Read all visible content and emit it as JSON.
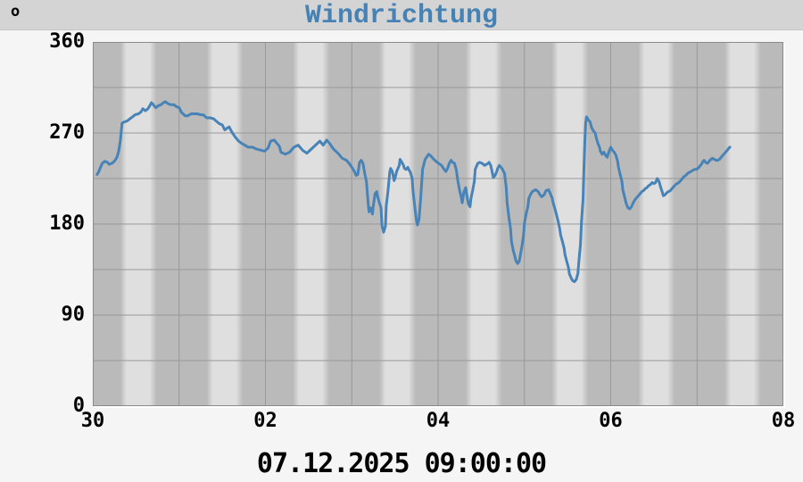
{
  "header": {
    "unit_label": "o",
    "title": "Windrichtung"
  },
  "footer": {
    "timestamp": "07.12.2025 09:00:00"
  },
  "colors": {
    "title": "#4682b4",
    "line": "#4783b7",
    "header_bar": "#d4d4d4",
    "page_background": "#f5f5f5",
    "band_night": "#bababa",
    "band_day": "#dfdfdf",
    "gridline": "#989898",
    "plot_border": "#8a8a8a",
    "text": "#000000"
  },
  "chart_data": {
    "type": "line",
    "title": "Windrichtung",
    "ylabel": "o",
    "ylim": [
      0,
      360
    ],
    "y_ticks": [
      0,
      90,
      180,
      270,
      360
    ],
    "grid_y_step": 45,
    "xlim_days": [
      0,
      8
    ],
    "x_ticks": [
      {
        "day": 0,
        "label": "30"
      },
      {
        "day": 2,
        "label": "02"
      },
      {
        "day": 4,
        "label": "04"
      },
      {
        "day": 6,
        "label": "06"
      },
      {
        "day": 8,
        "label": "08"
      }
    ],
    "grid": true,
    "legend": "none",
    "background_bands": "daily day/night shading, night dark gray, day light gray",
    "series": [
      {
        "name": "Windrichtung",
        "unit": "deg",
        "points": [
          [
            0.05,
            229
          ],
          [
            0.07,
            232
          ],
          [
            0.09,
            236
          ],
          [
            0.11,
            240
          ],
          [
            0.14,
            242
          ],
          [
            0.17,
            241
          ],
          [
            0.19,
            239
          ],
          [
            0.22,
            240
          ],
          [
            0.25,
            242
          ],
          [
            0.28,
            246
          ],
          [
            0.3,
            252
          ],
          [
            0.32,
            263
          ],
          [
            0.33,
            272
          ],
          [
            0.34,
            280
          ],
          [
            0.37,
            281
          ],
          [
            0.4,
            282
          ],
          [
            0.43,
            284
          ],
          [
            0.46,
            286
          ],
          [
            0.49,
            288
          ],
          [
            0.53,
            289
          ],
          [
            0.56,
            291
          ],
          [
            0.58,
            294
          ],
          [
            0.61,
            292
          ],
          [
            0.64,
            294
          ],
          [
            0.66,
            297
          ],
          [
            0.68,
            300
          ],
          [
            0.71,
            297
          ],
          [
            0.73,
            295
          ],
          [
            0.76,
            297
          ],
          [
            0.79,
            298
          ],
          [
            0.82,
            300
          ],
          [
            0.84,
            301
          ],
          [
            0.87,
            299
          ],
          [
            0.9,
            298
          ],
          [
            0.94,
            298
          ],
          [
            0.97,
            296
          ],
          [
            1.0,
            295
          ],
          [
            1.03,
            290
          ],
          [
            1.07,
            287
          ],
          [
            1.1,
            287
          ],
          [
            1.14,
            289
          ],
          [
            1.17,
            289
          ],
          [
            1.21,
            289
          ],
          [
            1.25,
            288
          ],
          [
            1.28,
            288
          ],
          [
            1.32,
            285
          ],
          [
            1.36,
            285
          ],
          [
            1.4,
            284
          ],
          [
            1.44,
            281
          ],
          [
            1.47,
            279
          ],
          [
            1.5,
            278
          ],
          [
            1.53,
            273
          ],
          [
            1.56,
            275
          ],
          [
            1.58,
            276
          ],
          [
            1.61,
            271
          ],
          [
            1.65,
            266
          ],
          [
            1.69,
            262
          ],
          [
            1.72,
            260
          ],
          [
            1.76,
            258
          ],
          [
            1.8,
            256
          ],
          [
            1.85,
            256
          ],
          [
            1.9,
            254
          ],
          [
            1.95,
            253
          ],
          [
            1.99,
            252
          ],
          [
            2.03,
            255
          ],
          [
            2.06,
            262
          ],
          [
            2.1,
            263
          ],
          [
            2.13,
            260
          ],
          [
            2.16,
            257
          ],
          [
            2.18,
            251
          ],
          [
            2.23,
            249
          ],
          [
            2.28,
            251
          ],
          [
            2.33,
            256
          ],
          [
            2.38,
            258
          ],
          [
            2.43,
            253
          ],
          [
            2.48,
            250
          ],
          [
            2.53,
            254
          ],
          [
            2.58,
            258
          ],
          [
            2.63,
            262
          ],
          [
            2.67,
            258
          ],
          [
            2.71,
            263
          ],
          [
            2.74,
            260
          ],
          [
            2.79,
            254
          ],
          [
            2.84,
            250
          ],
          [
            2.89,
            245
          ],
          [
            2.94,
            243
          ],
          [
            2.97,
            240
          ],
          [
            3.01,
            235
          ],
          [
            3.03,
            232
          ],
          [
            3.05,
            228
          ],
          [
            3.07,
            229
          ],
          [
            3.09,
            241
          ],
          [
            3.11,
            243
          ],
          [
            3.13,
            240
          ],
          [
            3.15,
            230
          ],
          [
            3.17,
            222
          ],
          [
            3.19,
            201
          ],
          [
            3.2,
            192
          ],
          [
            3.22,
            196
          ],
          [
            3.24,
            190
          ],
          [
            3.25,
            198
          ],
          [
            3.27,
            210
          ],
          [
            3.29,
            212
          ],
          [
            3.3,
            207
          ],
          [
            3.32,
            201
          ],
          [
            3.34,
            196
          ],
          [
            3.35,
            178
          ],
          [
            3.37,
            172
          ],
          [
            3.39,
            178
          ],
          [
            3.4,
            198
          ],
          [
            3.42,
            213
          ],
          [
            3.44,
            231
          ],
          [
            3.45,
            235
          ],
          [
            3.47,
            232
          ],
          [
            3.49,
            223
          ],
          [
            3.5,
            225
          ],
          [
            3.52,
            232
          ],
          [
            3.55,
            238
          ],
          [
            3.56,
            244
          ],
          [
            3.58,
            241
          ],
          [
            3.6,
            238
          ],
          [
            3.61,
            235
          ],
          [
            3.63,
            234
          ],
          [
            3.65,
            236
          ],
          [
            3.66,
            234
          ],
          [
            3.68,
            231
          ],
          [
            3.7,
            225
          ],
          [
            3.71,
            213
          ],
          [
            3.73,
            197
          ],
          [
            3.75,
            183
          ],
          [
            3.76,
            179
          ],
          [
            3.78,
            185
          ],
          [
            3.8,
            207
          ],
          [
            3.82,
            234
          ],
          [
            3.85,
            244
          ],
          [
            3.89,
            249
          ],
          [
            3.92,
            247
          ],
          [
            3.95,
            244
          ],
          [
            3.99,
            241
          ],
          [
            4.04,
            238
          ],
          [
            4.07,
            234
          ],
          [
            4.09,
            232
          ],
          [
            4.11,
            235
          ],
          [
            4.13,
            240
          ],
          [
            4.15,
            243
          ],
          [
            4.17,
            241
          ],
          [
            4.19,
            240
          ],
          [
            4.21,
            234
          ],
          [
            4.23,
            222
          ],
          [
            4.25,
            213
          ],
          [
            4.27,
            206
          ],
          [
            4.28,
            201
          ],
          [
            4.3,
            212
          ],
          [
            4.32,
            216
          ],
          [
            4.33,
            210
          ],
          [
            4.35,
            200
          ],
          [
            4.37,
            197
          ],
          [
            4.38,
            205
          ],
          [
            4.4,
            213
          ],
          [
            4.42,
            222
          ],
          [
            4.43,
            234
          ],
          [
            4.46,
            240
          ],
          [
            4.48,
            241
          ],
          [
            4.51,
            240
          ],
          [
            4.54,
            238
          ],
          [
            4.58,
            240
          ],
          [
            4.59,
            241
          ],
          [
            4.61,
            238
          ],
          [
            4.63,
            230
          ],
          [
            4.64,
            226
          ],
          [
            4.66,
            228
          ],
          [
            4.68,
            232
          ],
          [
            4.69,
            235
          ],
          [
            4.71,
            238
          ],
          [
            4.74,
            235
          ],
          [
            4.77,
            230
          ],
          [
            4.79,
            216
          ],
          [
            4.8,
            201
          ],
          [
            4.82,
            187
          ],
          [
            4.84,
            175
          ],
          [
            4.85,
            163
          ],
          [
            4.87,
            154
          ],
          [
            4.89,
            148
          ],
          [
            4.9,
            144
          ],
          [
            4.92,
            141
          ],
          [
            4.94,
            143
          ],
          [
            4.95,
            148
          ],
          [
            4.97,
            157
          ],
          [
            4.99,
            169
          ],
          [
            5.0,
            181
          ],
          [
            5.02,
            190
          ],
          [
            5.04,
            197
          ],
          [
            5.05,
            205
          ],
          [
            5.07,
            209
          ],
          [
            5.09,
            212
          ],
          [
            5.13,
            214
          ],
          [
            5.16,
            212
          ],
          [
            5.18,
            209
          ],
          [
            5.2,
            207
          ],
          [
            5.23,
            209
          ],
          [
            5.25,
            213
          ],
          [
            5.28,
            214
          ],
          [
            5.3,
            210
          ],
          [
            5.32,
            206
          ],
          [
            5.33,
            202
          ],
          [
            5.35,
            196
          ],
          [
            5.37,
            190
          ],
          [
            5.39,
            183
          ],
          [
            5.41,
            175
          ],
          [
            5.42,
            169
          ],
          [
            5.44,
            163
          ],
          [
            5.46,
            156
          ],
          [
            5.47,
            150
          ],
          [
            5.49,
            143
          ],
          [
            5.51,
            137
          ],
          [
            5.52,
            131
          ],
          [
            5.54,
            127
          ],
          [
            5.56,
            124
          ],
          [
            5.58,
            123
          ],
          [
            5.6,
            125
          ],
          [
            5.62,
            131
          ],
          [
            5.63,
            142
          ],
          [
            5.65,
            160
          ],
          [
            5.66,
            180
          ],
          [
            5.68,
            205
          ],
          [
            5.69,
            235
          ],
          [
            5.7,
            262
          ],
          [
            5.71,
            280
          ],
          [
            5.72,
            286
          ],
          [
            5.74,
            283
          ],
          [
            5.76,
            281
          ],
          [
            5.78,
            275
          ],
          [
            5.8,
            272
          ],
          [
            5.82,
            270
          ],
          [
            5.83,
            266
          ],
          [
            5.85,
            260
          ],
          [
            5.87,
            256
          ],
          [
            5.88,
            252
          ],
          [
            5.9,
            249
          ],
          [
            5.92,
            251
          ],
          [
            5.94,
            248
          ],
          [
            5.96,
            246
          ],
          [
            5.98,
            252
          ],
          [
            6.0,
            256
          ],
          [
            6.02,
            253
          ],
          [
            6.04,
            251
          ],
          [
            6.06,
            248
          ],
          [
            6.08,
            242
          ],
          [
            6.09,
            236
          ],
          [
            6.11,
            229
          ],
          [
            6.13,
            222
          ],
          [
            6.14,
            214
          ],
          [
            6.16,
            207
          ],
          [
            6.18,
            200
          ],
          [
            6.2,
            196
          ],
          [
            6.22,
            195
          ],
          [
            6.24,
            197
          ],
          [
            6.26,
            201
          ],
          [
            6.28,
            204
          ],
          [
            6.3,
            206
          ],
          [
            6.32,
            208
          ],
          [
            6.34,
            210
          ],
          [
            6.36,
            212
          ],
          [
            6.38,
            213
          ],
          [
            6.4,
            215
          ],
          [
            6.42,
            216
          ],
          [
            6.44,
            218
          ],
          [
            6.46,
            219
          ],
          [
            6.48,
            221
          ],
          [
            6.5,
            220
          ],
          [
            6.52,
            221
          ],
          [
            6.54,
            225
          ],
          [
            6.56,
            222
          ],
          [
            6.58,
            216
          ],
          [
            6.6,
            211
          ],
          [
            6.61,
            208
          ],
          [
            6.63,
            209
          ],
          [
            6.65,
            211
          ],
          [
            6.67,
            212
          ],
          [
            6.69,
            213
          ],
          [
            6.71,
            215
          ],
          [
            6.73,
            217
          ],
          [
            6.75,
            219
          ],
          [
            6.77,
            220
          ],
          [
            6.79,
            221
          ],
          [
            6.81,
            223
          ],
          [
            6.83,
            225
          ],
          [
            6.85,
            227
          ],
          [
            6.87,
            228
          ],
          [
            6.89,
            230
          ],
          [
            6.91,
            231
          ],
          [
            6.93,
            232
          ],
          [
            6.95,
            233
          ],
          [
            6.97,
            234
          ],
          [
            6.99,
            234
          ],
          [
            7.01,
            235
          ],
          [
            7.03,
            237
          ],
          [
            7.05,
            239
          ],
          [
            7.07,
            242
          ],
          [
            7.08,
            243
          ],
          [
            7.1,
            241
          ],
          [
            7.12,
            240
          ],
          [
            7.14,
            242
          ],
          [
            7.16,
            244
          ],
          [
            7.18,
            245
          ],
          [
            7.2,
            244
          ],
          [
            7.22,
            243
          ],
          [
            7.24,
            243
          ],
          [
            7.26,
            244
          ],
          [
            7.28,
            246
          ],
          [
            7.3,
            248
          ],
          [
            7.32,
            250
          ],
          [
            7.33,
            251
          ],
          [
            7.35,
            253
          ],
          [
            7.37,
            255
          ],
          [
            7.38,
            256
          ]
        ]
      }
    ]
  }
}
